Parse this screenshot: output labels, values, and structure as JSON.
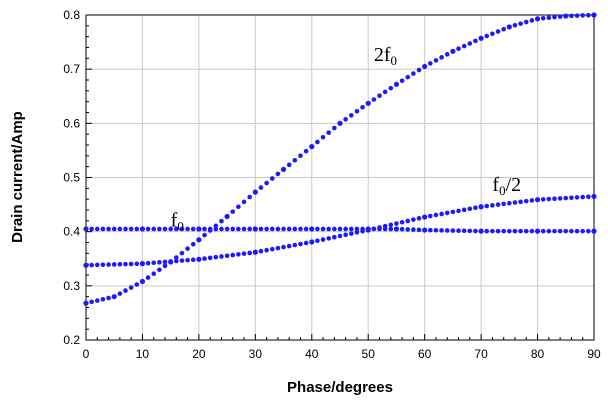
{
  "chart_data": {
    "type": "scatter",
    "xlabel": "Phase/degrees",
    "ylabel": "Drain current/Amp",
    "xlim": [
      0,
      90
    ],
    "ylim": [
      0.2,
      0.8
    ],
    "xticks": [
      0,
      10,
      20,
      30,
      40,
      50,
      60,
      70,
      80,
      90
    ],
    "xtick_labels": [
      "0",
      "10",
      "20",
      "30",
      "40",
      "50",
      "60",
      "70",
      "80",
      "90"
    ],
    "yticks": [
      0.2,
      0.3,
      0.4,
      0.5,
      0.6,
      0.7,
      0.8
    ],
    "ytick_labels": [
      "0.2",
      "0.3",
      "0.4",
      "0.5",
      "0.6",
      "0.7",
      "0.8"
    ],
    "grid": true,
    "marker_color": "#1a1aff",
    "series": [
      {
        "label": {
          "base": "f",
          "sub": "0",
          "tail": "",
          "x": 15,
          "y": 0.41
        },
        "x": [
          0,
          10,
          20,
          30,
          40,
          50,
          55,
          60,
          70,
          80,
          90
        ],
        "y": [
          0.405,
          0.405,
          0.405,
          0.405,
          0.405,
          0.405,
          0.405,
          0.403,
          0.401,
          0.401,
          0.401
        ]
      },
      {
        "label": {
          "base": "f",
          "sub": "0",
          "tail": "/2",
          "x": 72,
          "y": 0.475
        },
        "x": [
          0,
          10,
          20,
          30,
          40,
          50,
          60,
          70,
          80,
          90
        ],
        "y": [
          0.338,
          0.341,
          0.349,
          0.362,
          0.381,
          0.403,
          0.427,
          0.446,
          0.459,
          0.465
        ]
      },
      {
        "label": {
          "base": "2f",
          "sub": "0",
          "tail": "",
          "x": 51,
          "y": 0.715
        },
        "x": [
          0,
          5,
          10,
          15,
          20,
          25,
          30,
          35,
          40,
          45,
          50,
          55,
          60,
          65,
          70,
          75,
          80,
          85,
          90
        ],
        "y": [
          0.268,
          0.28,
          0.308,
          0.344,
          0.385,
          0.428,
          0.473,
          0.515,
          0.557,
          0.6,
          0.637,
          0.672,
          0.705,
          0.733,
          0.757,
          0.778,
          0.793,
          0.798,
          0.8
        ]
      }
    ]
  }
}
